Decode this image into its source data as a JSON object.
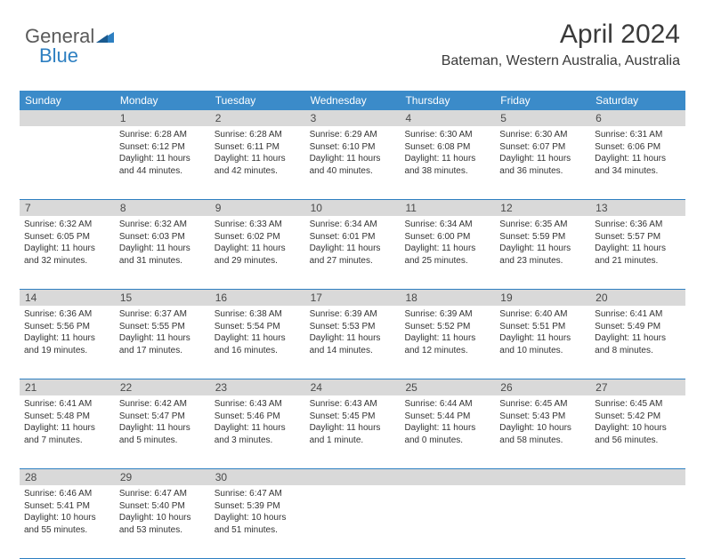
{
  "logo": {
    "part1": "General",
    "part2": "Blue"
  },
  "title": "April 2024",
  "location": "Bateman, Western Australia, Australia",
  "colors": {
    "header_bg": "#3b8bc9",
    "header_text": "#ffffff",
    "daynum_bg": "#d9d9d9",
    "daynum_text": "#4a4a4a",
    "border": "#2d7fc1",
    "body_text": "#333333",
    "logo_gray": "#5a5a5a",
    "logo_blue": "#2d7fc1"
  },
  "day_headers": [
    "Sunday",
    "Monday",
    "Tuesday",
    "Wednesday",
    "Thursday",
    "Friday",
    "Saturday"
  ],
  "weeks": [
    {
      "nums": [
        "",
        "1",
        "2",
        "3",
        "4",
        "5",
        "6"
      ],
      "cells": [
        {
          "sunrise": "",
          "sunset": "",
          "daylight": ""
        },
        {
          "sunrise": "Sunrise: 6:28 AM",
          "sunset": "Sunset: 6:12 PM",
          "daylight": "Daylight: 11 hours and 44 minutes."
        },
        {
          "sunrise": "Sunrise: 6:28 AM",
          "sunset": "Sunset: 6:11 PM",
          "daylight": "Daylight: 11 hours and 42 minutes."
        },
        {
          "sunrise": "Sunrise: 6:29 AM",
          "sunset": "Sunset: 6:10 PM",
          "daylight": "Daylight: 11 hours and 40 minutes."
        },
        {
          "sunrise": "Sunrise: 6:30 AM",
          "sunset": "Sunset: 6:08 PM",
          "daylight": "Daylight: 11 hours and 38 minutes."
        },
        {
          "sunrise": "Sunrise: 6:30 AM",
          "sunset": "Sunset: 6:07 PM",
          "daylight": "Daylight: 11 hours and 36 minutes."
        },
        {
          "sunrise": "Sunrise: 6:31 AM",
          "sunset": "Sunset: 6:06 PM",
          "daylight": "Daylight: 11 hours and 34 minutes."
        }
      ]
    },
    {
      "nums": [
        "7",
        "8",
        "9",
        "10",
        "11",
        "12",
        "13"
      ],
      "cells": [
        {
          "sunrise": "Sunrise: 6:32 AM",
          "sunset": "Sunset: 6:05 PM",
          "daylight": "Daylight: 11 hours and 32 minutes."
        },
        {
          "sunrise": "Sunrise: 6:32 AM",
          "sunset": "Sunset: 6:03 PM",
          "daylight": "Daylight: 11 hours and 31 minutes."
        },
        {
          "sunrise": "Sunrise: 6:33 AM",
          "sunset": "Sunset: 6:02 PM",
          "daylight": "Daylight: 11 hours and 29 minutes."
        },
        {
          "sunrise": "Sunrise: 6:34 AM",
          "sunset": "Sunset: 6:01 PM",
          "daylight": "Daylight: 11 hours and 27 minutes."
        },
        {
          "sunrise": "Sunrise: 6:34 AM",
          "sunset": "Sunset: 6:00 PM",
          "daylight": "Daylight: 11 hours and 25 minutes."
        },
        {
          "sunrise": "Sunrise: 6:35 AM",
          "sunset": "Sunset: 5:59 PM",
          "daylight": "Daylight: 11 hours and 23 minutes."
        },
        {
          "sunrise": "Sunrise: 6:36 AM",
          "sunset": "Sunset: 5:57 PM",
          "daylight": "Daylight: 11 hours and 21 minutes."
        }
      ]
    },
    {
      "nums": [
        "14",
        "15",
        "16",
        "17",
        "18",
        "19",
        "20"
      ],
      "cells": [
        {
          "sunrise": "Sunrise: 6:36 AM",
          "sunset": "Sunset: 5:56 PM",
          "daylight": "Daylight: 11 hours and 19 minutes."
        },
        {
          "sunrise": "Sunrise: 6:37 AM",
          "sunset": "Sunset: 5:55 PM",
          "daylight": "Daylight: 11 hours and 17 minutes."
        },
        {
          "sunrise": "Sunrise: 6:38 AM",
          "sunset": "Sunset: 5:54 PM",
          "daylight": "Daylight: 11 hours and 16 minutes."
        },
        {
          "sunrise": "Sunrise: 6:39 AM",
          "sunset": "Sunset: 5:53 PM",
          "daylight": "Daylight: 11 hours and 14 minutes."
        },
        {
          "sunrise": "Sunrise: 6:39 AM",
          "sunset": "Sunset: 5:52 PM",
          "daylight": "Daylight: 11 hours and 12 minutes."
        },
        {
          "sunrise": "Sunrise: 6:40 AM",
          "sunset": "Sunset: 5:51 PM",
          "daylight": "Daylight: 11 hours and 10 minutes."
        },
        {
          "sunrise": "Sunrise: 6:41 AM",
          "sunset": "Sunset: 5:49 PM",
          "daylight": "Daylight: 11 hours and 8 minutes."
        }
      ]
    },
    {
      "nums": [
        "21",
        "22",
        "23",
        "24",
        "25",
        "26",
        "27"
      ],
      "cells": [
        {
          "sunrise": "Sunrise: 6:41 AM",
          "sunset": "Sunset: 5:48 PM",
          "daylight": "Daylight: 11 hours and 7 minutes."
        },
        {
          "sunrise": "Sunrise: 6:42 AM",
          "sunset": "Sunset: 5:47 PM",
          "daylight": "Daylight: 11 hours and 5 minutes."
        },
        {
          "sunrise": "Sunrise: 6:43 AM",
          "sunset": "Sunset: 5:46 PM",
          "daylight": "Daylight: 11 hours and 3 minutes."
        },
        {
          "sunrise": "Sunrise: 6:43 AM",
          "sunset": "Sunset: 5:45 PM",
          "daylight": "Daylight: 11 hours and 1 minute."
        },
        {
          "sunrise": "Sunrise: 6:44 AM",
          "sunset": "Sunset: 5:44 PM",
          "daylight": "Daylight: 11 hours and 0 minutes."
        },
        {
          "sunrise": "Sunrise: 6:45 AM",
          "sunset": "Sunset: 5:43 PM",
          "daylight": "Daylight: 10 hours and 58 minutes."
        },
        {
          "sunrise": "Sunrise: 6:45 AM",
          "sunset": "Sunset: 5:42 PM",
          "daylight": "Daylight: 10 hours and 56 minutes."
        }
      ]
    },
    {
      "nums": [
        "28",
        "29",
        "30",
        "",
        "",
        "",
        ""
      ],
      "cells": [
        {
          "sunrise": "Sunrise: 6:46 AM",
          "sunset": "Sunset: 5:41 PM",
          "daylight": "Daylight: 10 hours and 55 minutes."
        },
        {
          "sunrise": "Sunrise: 6:47 AM",
          "sunset": "Sunset: 5:40 PM",
          "daylight": "Daylight: 10 hours and 53 minutes."
        },
        {
          "sunrise": "Sunrise: 6:47 AM",
          "sunset": "Sunset: 5:39 PM",
          "daylight": "Daylight: 10 hours and 51 minutes."
        },
        {
          "sunrise": "",
          "sunset": "",
          "daylight": ""
        },
        {
          "sunrise": "",
          "sunset": "",
          "daylight": ""
        },
        {
          "sunrise": "",
          "sunset": "",
          "daylight": ""
        },
        {
          "sunrise": "",
          "sunset": "",
          "daylight": ""
        }
      ]
    }
  ]
}
